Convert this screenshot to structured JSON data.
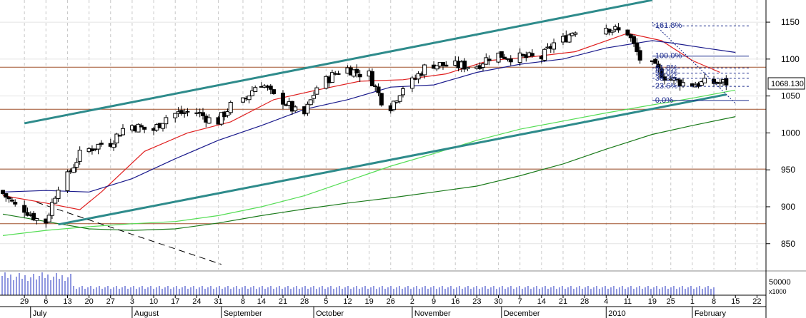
{
  "chart_data": [
    {
      "type": "candlestick",
      "title": "",
      "ylim": [
        815,
        1180
      ],
      "y_ticks": [
        850,
        900,
        950,
        1000,
        1050,
        1100,
        1150
      ],
      "last_price": "1068.130",
      "x_range": [
        "2009-06-22",
        "2010-02-24"
      ],
      "date_ticks": [
        {
          "date": "2009-06-29",
          "label": "29"
        },
        {
          "date": "2009-07-06",
          "label": "6"
        },
        {
          "date": "2009-07-13",
          "label": "13"
        },
        {
          "date": "2009-07-20",
          "label": "20"
        },
        {
          "date": "2009-07-27",
          "label": "27"
        },
        {
          "date": "2009-08-03",
          "label": "3"
        },
        {
          "date": "2009-08-10",
          "label": "10"
        },
        {
          "date": "2009-08-17",
          "label": "17"
        },
        {
          "date": "2009-08-24",
          "label": "24"
        },
        {
          "date": "2009-08-31",
          "label": "31"
        },
        {
          "date": "2009-09-08",
          "label": "8"
        },
        {
          "date": "2009-09-14",
          "label": "14"
        },
        {
          "date": "2009-09-21",
          "label": "21"
        },
        {
          "date": "2009-09-28",
          "label": "28"
        },
        {
          "date": "2009-10-05",
          "label": "5"
        },
        {
          "date": "2009-10-12",
          "label": "12"
        },
        {
          "date": "2009-10-19",
          "label": "19"
        },
        {
          "date": "2009-10-26",
          "label": "26"
        },
        {
          "date": "2009-11-02",
          "label": "2"
        },
        {
          "date": "2009-11-09",
          "label": "9"
        },
        {
          "date": "2009-11-16",
          "label": "16"
        },
        {
          "date": "2009-11-23",
          "label": "23"
        },
        {
          "date": "2009-11-30",
          "label": "30"
        },
        {
          "date": "2009-12-07",
          "label": "7"
        },
        {
          "date": "2009-12-14",
          "label": "14"
        },
        {
          "date": "2009-12-21",
          "label": "21"
        },
        {
          "date": "2009-12-28",
          "label": "28"
        },
        {
          "date": "2010-01-04",
          "label": "4"
        },
        {
          "date": "2010-01-11",
          "label": "11"
        },
        {
          "date": "2010-01-19",
          "label": "19"
        },
        {
          "date": "2010-01-25",
          "label": "25"
        },
        {
          "date": "2010-02-01",
          "label": "1"
        },
        {
          "date": "2010-02-08",
          "label": "8"
        },
        {
          "date": "2010-02-15",
          "label": "15"
        },
        {
          "date": "2010-02-22",
          "label": "22"
        }
      ],
      "month_labels": [
        {
          "date": "2009-07-01",
          "label": "July"
        },
        {
          "date": "2009-08-03",
          "label": "August"
        },
        {
          "date": "2009-09-01",
          "label": "September"
        },
        {
          "date": "2009-10-01",
          "label": "October"
        },
        {
          "date": "2009-11-02",
          "label": "November"
        },
        {
          "date": "2009-12-01",
          "label": "December"
        },
        {
          "date": "2010-01-04",
          "label": "2010"
        },
        {
          "date": "2010-02-01",
          "label": "February"
        }
      ],
      "weekly_closes": [
        {
          "date": "2009-06-22",
          "close": 918
        },
        {
          "date": "2009-06-29",
          "close": 897
        },
        {
          "date": "2009-07-06",
          "close": 880
        },
        {
          "date": "2009-07-13",
          "close": 941
        },
        {
          "date": "2009-07-20",
          "close": 978
        },
        {
          "date": "2009-07-27",
          "close": 987
        },
        {
          "date": "2009-08-03",
          "close": 1010
        },
        {
          "date": "2009-08-10",
          "close": 1004
        },
        {
          "date": "2009-08-17",
          "close": 1026
        },
        {
          "date": "2009-08-24",
          "close": 1028
        },
        {
          "date": "2009-08-31",
          "close": 1016
        },
        {
          "date": "2009-09-08",
          "close": 1042
        },
        {
          "date": "2009-09-14",
          "close": 1068
        },
        {
          "date": "2009-09-21",
          "close": 1044
        },
        {
          "date": "2009-09-28",
          "close": 1025
        },
        {
          "date": "2009-10-05",
          "close": 1071
        },
        {
          "date": "2009-10-12",
          "close": 1087
        },
        {
          "date": "2009-10-19",
          "close": 1079
        },
        {
          "date": "2009-10-26",
          "close": 1036
        },
        {
          "date": "2009-11-02",
          "close": 1069
        },
        {
          "date": "2009-11-09",
          "close": 1093
        },
        {
          "date": "2009-11-16",
          "close": 1091
        },
        {
          "date": "2009-11-23",
          "close": 1091
        },
        {
          "date": "2009-11-30",
          "close": 1106
        },
        {
          "date": "2009-12-07",
          "close": 1102
        },
        {
          "date": "2009-12-14",
          "close": 1102
        },
        {
          "date": "2009-12-21",
          "close": 1126
        },
        {
          "date": "2010-01-04",
          "close": 1144
        },
        {
          "date": "2010-01-11",
          "close": 1136
        },
        {
          "date": "2010-01-19",
          "close": 1091
        },
        {
          "date": "2010-01-25",
          "close": 1073
        },
        {
          "date": "2010-02-01",
          "close": 1066
        },
        {
          "date": "2010-02-08",
          "close": 1068
        }
      ],
      "horizontal_lines": [
        877,
        951,
        1032,
        1089
      ],
      "trend_lines": [
        {
          "name": "upper-channel",
          "from": [
            "2009-06-29",
            1013
          ],
          "to": [
            "2010-01-19",
            1180
          ]
        },
        {
          "name": "lower-channel",
          "from": [
            "2009-07-10",
            876
          ],
          "to": [
            "2010-02-12",
            1052
          ]
        },
        {
          "name": "descending",
          "from": [
            "2009-07-03",
            906
          ],
          "to": [
            "2009-09-01",
            822
          ]
        }
      ],
      "fibonacci": {
        "from": [
          "2010-01-19",
          1150
        ],
        "to": [
          "2010-02-15",
          1040
        ],
        "levels": [
          {
            "label": "161.8%",
            "value": 1145
          },
          {
            "label": "100.0%",
            "value": 1104
          },
          {
            "label": "61.8%",
            "value": 1088
          },
          {
            "label": "50.0%",
            "value": 1081
          },
          {
            "label": "38.2%",
            "value": 1074
          },
          {
            "label": "23.6%",
            "value": 1063
          },
          {
            "label": "0.0%",
            "value": 1044
          }
        ]
      },
      "moving_averages": [
        {
          "color": "#e02020",
          "points": [
            [
              "2009-06-22",
              915
            ],
            [
              "2009-07-06",
              905
            ],
            [
              "2009-07-17",
              896
            ],
            [
              "2009-07-24",
              920
            ],
            [
              "2009-08-07",
              975
            ],
            [
              "2009-08-21",
              1000
            ],
            [
              "2009-09-04",
              1015
            ],
            [
              "2009-09-18",
              1045
            ],
            [
              "2009-10-02",
              1058
            ],
            [
              "2009-10-16",
              1070
            ],
            [
              "2009-10-30",
              1072
            ],
            [
              "2009-11-13",
              1080
            ],
            [
              "2009-11-27",
              1098
            ],
            [
              "2009-12-11",
              1103
            ],
            [
              "2009-12-25",
              1110
            ],
            [
              "2010-01-11",
              1135
            ],
            [
              "2010-01-22",
              1125
            ],
            [
              "2010-02-01",
              1098
            ],
            [
              "2010-02-10",
              1082
            ]
          ]
        },
        {
          "color": "#1a1a8c",
          "points": [
            [
              "2009-06-22",
              920
            ],
            [
              "2009-07-06",
              922
            ],
            [
              "2009-07-20",
              920
            ],
            [
              "2009-08-03",
              938
            ],
            [
              "2009-08-17",
              965
            ],
            [
              "2009-08-31",
              990
            ],
            [
              "2009-09-14",
              1010
            ],
            [
              "2009-09-28",
              1032
            ],
            [
              "2009-10-12",
              1045
            ],
            [
              "2009-10-26",
              1062
            ],
            [
              "2009-11-09",
              1065
            ],
            [
              "2009-11-23",
              1082
            ],
            [
              "2009-12-07",
              1093
            ],
            [
              "2009-12-21",
              1100
            ],
            [
              "2010-01-04",
              1115
            ],
            [
              "2010-01-19",
              1125
            ],
            [
              "2010-01-25",
              1122
            ],
            [
              "2010-02-05",
              1115
            ],
            [
              "2010-02-15",
              1109
            ]
          ]
        },
        {
          "color": "#55dd55",
          "points": [
            [
              "2009-06-22",
              861
            ],
            [
              "2009-07-06",
              868
            ],
            [
              "2009-07-20",
              873
            ],
            [
              "2009-08-03",
              877
            ],
            [
              "2009-08-17",
              880
            ],
            [
              "2009-08-31",
              888
            ],
            [
              "2009-09-14",
              900
            ],
            [
              "2009-09-28",
              915
            ],
            [
              "2009-10-12",
              935
            ],
            [
              "2009-10-26",
              955
            ],
            [
              "2009-11-09",
              972
            ],
            [
              "2009-11-23",
              990
            ],
            [
              "2009-12-07",
              1005
            ],
            [
              "2009-12-21",
              1016
            ],
            [
              "2010-01-04",
              1027
            ],
            [
              "2010-01-19",
              1038
            ],
            [
              "2010-02-01",
              1047
            ],
            [
              "2010-02-15",
              1058
            ]
          ]
        },
        {
          "color": "#1a7a1a",
          "points": [
            [
              "2009-06-22",
              890
            ],
            [
              "2009-07-06",
              880
            ],
            [
              "2009-07-20",
              870
            ],
            [
              "2009-08-03",
              868
            ],
            [
              "2009-08-17",
              870
            ],
            [
              "2009-08-31",
              878
            ],
            [
              "2009-09-14",
              888
            ],
            [
              "2009-09-28",
              897
            ],
            [
              "2009-10-12",
              905
            ],
            [
              "2009-10-26",
              912
            ],
            [
              "2009-11-09",
              920
            ],
            [
              "2009-11-23",
              928
            ],
            [
              "2009-12-07",
              942
            ],
            [
              "2009-12-21",
              958
            ],
            [
              "2010-01-04",
              978
            ],
            [
              "2010-01-19",
              998
            ],
            [
              "2010-02-01",
              1010
            ],
            [
              "2010-02-15",
              1022
            ]
          ]
        }
      ]
    },
    {
      "type": "bar",
      "title": "",
      "ylabel": "x1000",
      "y_ticks": [
        50000
      ],
      "tick_labels": [
        "50000"
      ],
      "unit_label": "x1000"
    }
  ],
  "colors": {
    "candle_up": "#ffffff",
    "candle_down": "#000000",
    "channel": "#2e8b8b",
    "horizontal_line": "#a0522d",
    "fibonacci": "#1a2a8c",
    "volume": "#2030c0",
    "grid": "#c8c8c8"
  }
}
